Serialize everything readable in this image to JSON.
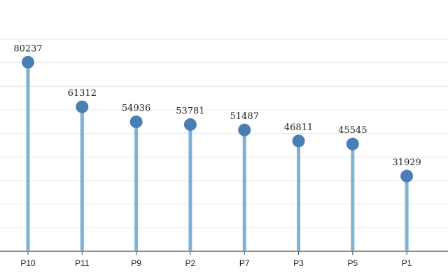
{
  "chart_data": {
    "type": "lollipop",
    "categories": [
      "P10",
      "P11",
      "P9",
      "P2",
      "P7",
      "P3",
      "P5",
      "P1"
    ],
    "values": [
      80237,
      61312,
      54936,
      53781,
      51487,
      46811,
      45545,
      31929
    ],
    "color": "#4a7fb5",
    "stem_color": "#7fb2d3",
    "ylim": [
      0,
      90000
    ],
    "yticks": [
      0,
      10000,
      20000,
      30000,
      40000,
      50000,
      60000,
      70000,
      80000,
      90000
    ],
    "grid": true
  }
}
